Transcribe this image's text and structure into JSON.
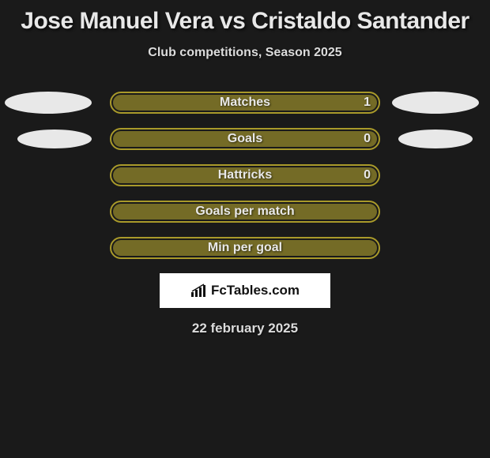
{
  "title": "Jose Manuel Vera vs Cristaldo Santander",
  "subtitle": "Club competitions, Season 2025",
  "colors": {
    "bar_border": "#a99a2a",
    "bar_fill": "#b0a12e",
    "ellipse_left": "#e8e8e8",
    "ellipse_right": "#e8e8e8",
    "background": "#1a1a1a"
  },
  "rows": [
    {
      "label": "Matches",
      "value": "1",
      "show_value": true,
      "left_ellipse": true,
      "right_ellipse": true
    },
    {
      "label": "Goals",
      "value": "0",
      "show_value": true,
      "left_ellipse": true,
      "right_ellipse": true
    },
    {
      "label": "Hattricks",
      "value": "0",
      "show_value": true,
      "left_ellipse": false,
      "right_ellipse": false
    },
    {
      "label": "Goals per match",
      "value": "",
      "show_value": false,
      "left_ellipse": false,
      "right_ellipse": false
    },
    {
      "label": "Min per goal",
      "value": "",
      "show_value": false,
      "left_ellipse": false,
      "right_ellipse": false
    }
  ],
  "logo_text": "FcTables.com",
  "date": "22 february 2025"
}
